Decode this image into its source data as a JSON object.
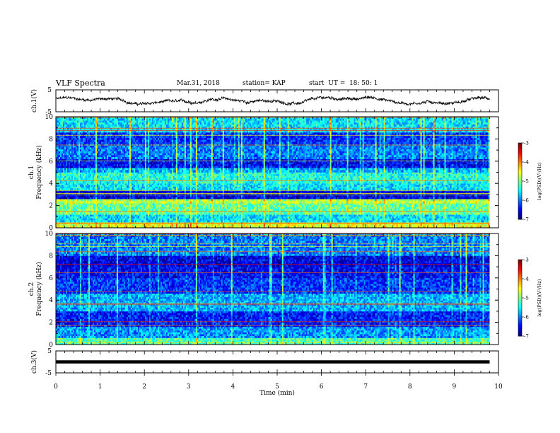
{
  "header": {
    "title": "VLF Spectra",
    "date": "Mar.31, 2018",
    "station": "station= KAP",
    "start": "start  UT =  18: 50: 1"
  },
  "chart_data": [
    {
      "type": "line",
      "panel": "ch1-waveform",
      "ylabel": "ch.1(V)",
      "ylim": [
        -5,
        5
      ],
      "yticks": [
        -5,
        5
      ],
      "xlim": [
        0,
        10
      ],
      "series": [
        {
          "values_description_only_in_script": false,
          "mean": 0.0,
          "amplitude": 1.2
        }
      ]
    },
    {
      "type": "heatmap",
      "panel": "ch1-spectrogram",
      "ylabel": [
        "ch.1",
        "Frequency (kHz)"
      ],
      "ylim": [
        0,
        10
      ],
      "yticks": [
        0,
        2,
        4,
        6,
        8,
        10
      ],
      "xlim": [
        0,
        9.8
      ],
      "colorbar": {
        "label": "log(PSD)(V²/Hz)",
        "range": [
          -7,
          -3
        ],
        "ticks": [
          -3,
          -4,
          -5,
          -6,
          -7
        ]
      },
      "bands": [
        {
          "from": 0.0,
          "to": 0.5,
          "level": -4.6
        },
        {
          "from": 0.5,
          "to": 1.2,
          "level": -5.6
        },
        {
          "from": 1.2,
          "to": 2.2,
          "level": -5.1
        },
        {
          "from": 2.2,
          "to": 2.6,
          "level": -4.8
        },
        {
          "from": 2.6,
          "to": 3.4,
          "level": -6.6
        },
        {
          "from": 3.4,
          "to": 4.0,
          "level": -5.6
        },
        {
          "from": 4.0,
          "to": 5.0,
          "level": -5.4
        },
        {
          "from": 5.0,
          "to": 5.4,
          "level": -5.8
        },
        {
          "from": 5.4,
          "to": 6.2,
          "level": -6.5
        },
        {
          "from": 6.2,
          "to": 7.4,
          "level": -6.0
        },
        {
          "from": 7.4,
          "to": 8.6,
          "level": -6.3
        },
        {
          "from": 8.6,
          "to": 10.0,
          "level": -5.6
        }
      ]
    },
    {
      "type": "heatmap",
      "panel": "ch2-spectrogram",
      "ylabel": [
        "ch.2",
        "Frequency (kHz)"
      ],
      "ylim": [
        0,
        10
      ],
      "yticks": [
        0,
        2,
        4,
        6,
        8,
        10
      ],
      "xlim": [
        0,
        9.8
      ],
      "colorbar": {
        "label": "log(PSD)(V²/Hz)",
        "range": [
          -7,
          -3
        ],
        "ticks": [
          -3,
          -4,
          -5,
          -6,
          -7
        ]
      },
      "bands": [
        {
          "from": 0.0,
          "to": 0.6,
          "level": -5.2
        },
        {
          "from": 0.6,
          "to": 1.6,
          "level": -5.9
        },
        {
          "from": 1.6,
          "to": 3.0,
          "level": -6.4
        },
        {
          "from": 3.0,
          "to": 4.6,
          "level": -5.8
        },
        {
          "from": 4.6,
          "to": 6.0,
          "level": -6.3
        },
        {
          "from": 6.0,
          "to": 7.0,
          "level": -6.5
        },
        {
          "from": 7.0,
          "to": 8.0,
          "level": -6.6
        },
        {
          "from": 8.0,
          "to": 10.0,
          "level": -6.0
        }
      ]
    },
    {
      "type": "line",
      "panel": "ch3-waveform",
      "ylabel": "ch.3(V)",
      "ylim": [
        -5,
        5
      ],
      "yticks": [
        -5,
        5
      ],
      "xlim": [
        0,
        10
      ],
      "series": [
        {
          "constant": 0.0
        }
      ]
    }
  ],
  "xaxis": {
    "label": "Time (min)",
    "ticks": [
      "0",
      "1",
      "2",
      "3",
      "4",
      "5",
      "6",
      "7",
      "8",
      "9",
      "10"
    ]
  }
}
